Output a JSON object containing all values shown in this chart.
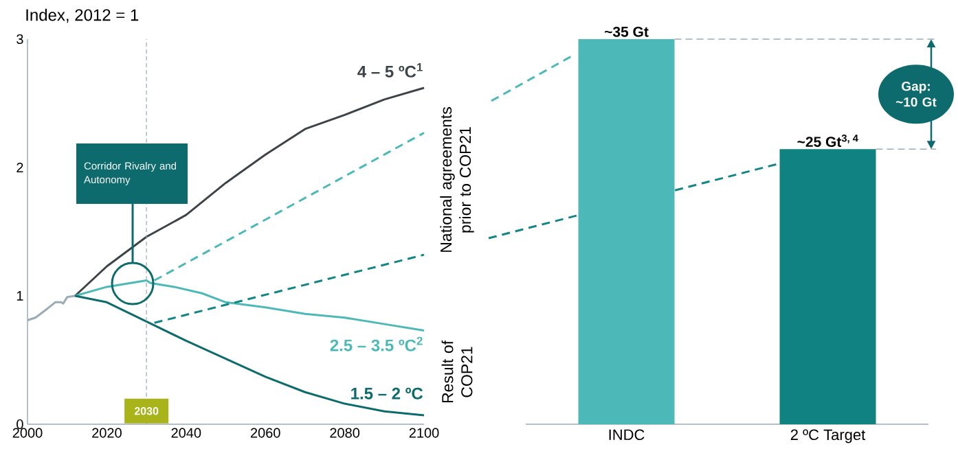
{
  "chart_data": [
    {
      "type": "line",
      "ylabel": "Index, 2012 = 1",
      "xlim": [
        2000,
        2100
      ],
      "ylim": [
        0,
        3
      ],
      "xticks": [
        2000,
        2020,
        2040,
        2060,
        2080,
        2100
      ],
      "yticks": [
        0,
        1,
        2,
        3
      ],
      "series": [
        {
          "color": "#9aabb8",
          "x": [
            2000,
            2002,
            2005,
            2007,
            2008.5,
            2009,
            2010,
            2012
          ],
          "values": [
            0.81,
            0.83,
            0.9,
            0.95,
            0.95,
            0.94,
            0.99,
            1.0
          ]
        },
        {
          "name": "4 – 5 ºC$^{1}$",
          "color": "#3d4448",
          "x": [
            2012,
            2020,
            2030,
            2040,
            2050,
            2060,
            2070,
            2080,
            2090,
            2100
          ],
          "values": [
            1.0,
            1.23,
            1.46,
            1.63,
            1.88,
            2.1,
            2.3,
            2.41,
            2.53,
            2.62
          ]
        },
        {
          "name": "2.5 – 3.5 ºC$^{2}$",
          "color": "#4db8b8",
          "x": [
            2012,
            2020,
            2030,
            2031,
            2037,
            2044,
            2050,
            2060,
            2070,
            2080,
            2090,
            2100
          ],
          "values": [
            1.0,
            1.07,
            1.12,
            1.1,
            1.07,
            1.02,
            0.95,
            0.91,
            0.86,
            0.83,
            0.78,
            0.73
          ]
        },
        {
          "name": "1.5 – 2 ºC",
          "color": "#0d6b6e",
          "x": [
            2012,
            2020,
            2030,
            2040,
            2050,
            2060,
            2070,
            2080,
            2090,
            2100
          ],
          "values": [
            1.0,
            0.95,
            0.8,
            0.65,
            0.51,
            0.37,
            0.25,
            0.16,
            0.1,
            0.07
          ]
        },
        {
          "color": "#4db8b8",
          "line_style": "dashed",
          "x": [
            2032,
            2100
          ],
          "values": [
            1.12,
            2.27
          ]
        },
        {
          "color": "#148585",
          "line_style": "dashed",
          "x": [
            2032,
            2100
          ],
          "values": [
            0.79,
            1.32
          ]
        }
      ],
      "ref_lines": [
        {
          "axis": "x",
          "value": 2030,
          "label": "2030",
          "color": "#9aabb8",
          "line_style": "dashed"
        }
      ],
      "annotations": [
        "Corridor Rivalry and Autonomy",
        "National agreements prior to COP21",
        "Result of COP21"
      ]
    },
    {
      "type": "bar",
      "categories": [
        "INDC",
        "2 ºC Target"
      ],
      "values": [
        35,
        25
      ],
      "colors": [
        "#4db8b8",
        "#118282"
      ],
      "value_labels": [
        "~35 Gt",
        "~25 Gt$^{3, 4}$"
      ],
      "annotations": [
        "Gap: ~10 Gt"
      ]
    }
  ]
}
